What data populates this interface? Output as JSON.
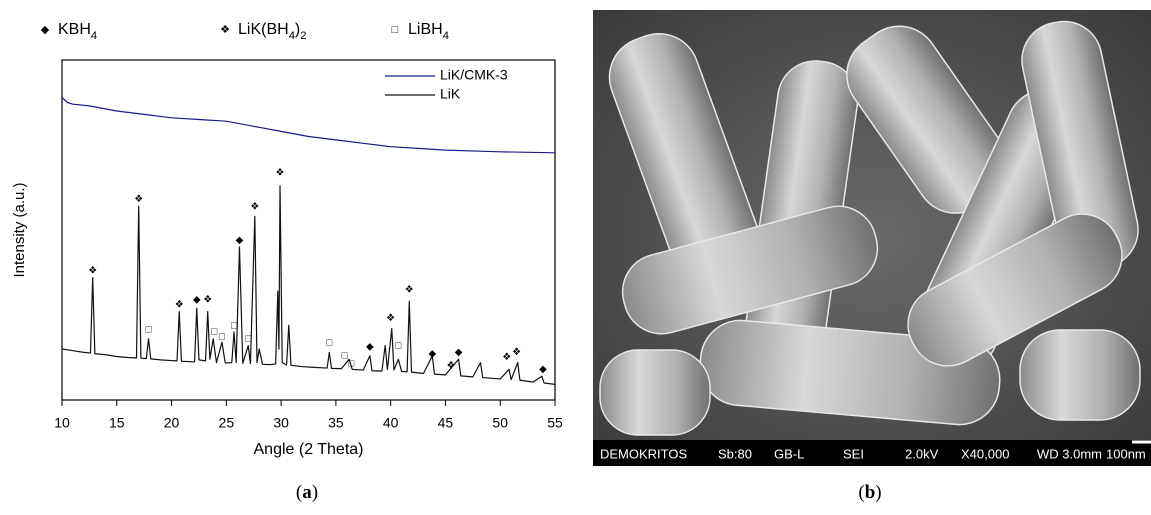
{
  "chart_data": {
    "type": "line",
    "x_label": "Angle (2 Theta)",
    "y_label": "Intensity (a.u.)",
    "xlim": [
      10,
      55
    ],
    "xticks": [
      10,
      15,
      20,
      25,
      30,
      35,
      40,
      45,
      50,
      55
    ],
    "ylim": [
      0,
      100
    ],
    "legend": "top-right",
    "series": [
      {
        "name": "LiK/CMK-3",
        "color": "#1a1a8c",
        "x": [
          10,
          10.5,
          11,
          12.5,
          15,
          17.5,
          20,
          22.5,
          25,
          27.5,
          30,
          32.5,
          35,
          37.5,
          40,
          42.5,
          45,
          50,
          55
        ],
        "values": [
          89,
          87.5,
          87,
          86.5,
          85,
          84,
          83,
          82.5,
          82,
          80.5,
          79,
          77.5,
          76.5,
          75.5,
          74.5,
          74,
          73.5,
          73,
          72.7
        ]
      },
      {
        "name": "LiK",
        "color": "#111111",
        "x": [
          10,
          11,
          12,
          12.6,
          12.8,
          13.0,
          14,
          15,
          16,
          16.8,
          17.0,
          17.2,
          17.7,
          17.9,
          18.1,
          19,
          20,
          20.5,
          20.7,
          20.9,
          21.5,
          22.1,
          22.3,
          22.5,
          23.1,
          23.3,
          23.5,
          23.8,
          24.1,
          24.6,
          24.9,
          25.5,
          25.7,
          25.9,
          26.2,
          26.5,
          27.0,
          27.2,
          27.6,
          27.8,
          28.0,
          28.3,
          29,
          29.5,
          29.7,
          29.8,
          29.9,
          30.1,
          30.5,
          30.7,
          30.9,
          32,
          33,
          34.2,
          34.4,
          34.6,
          35.5,
          36.2,
          36.5,
          37.5,
          38.1,
          38.3,
          39.2,
          39.5,
          39.7,
          40.1,
          40.3,
          40.7,
          41,
          41.5,
          41.7,
          41.9,
          43,
          43.8,
          44,
          45,
          46.2,
          46.4,
          47.5,
          48.2,
          48.4,
          50,
          50.8,
          51,
          51.6,
          51.8,
          53,
          53.8,
          54,
          55
        ],
        "values": [
          15,
          14.5,
          14,
          13.8,
          36,
          13.6,
          13.3,
          12.8,
          12.5,
          12.4,
          57,
          12.3,
          12.2,
          18,
          12.1,
          11.8,
          11.6,
          11.5,
          26,
          11.4,
          11.3,
          11.2,
          27,
          11.8,
          11.5,
          26,
          12,
          18,
          11,
          17,
          10.9,
          11,
          20,
          11,
          45,
          10.8,
          16,
          10.7,
          54,
          11,
          15,
          10.5,
          10.4,
          10.6,
          32,
          15,
          63,
          11,
          10.3,
          22,
          10.2,
          9.8,
          9.6,
          9.4,
          14,
          9.3,
          9.2,
          12,
          9,
          8.8,
          13,
          8.6,
          8.5,
          16,
          9,
          21,
          8.8,
          12,
          8.4,
          8.3,
          29,
          8.2,
          7.8,
          13,
          7.6,
          7.4,
          12,
          7.1,
          6.8,
          11,
          6.6,
          6.2,
          9,
          6,
          11,
          5.8,
          5.3,
          7,
          5,
          4.6
        ]
      }
    ],
    "phases": [
      {
        "symbol": "◆",
        "label": [
          "KBH",
          "4"
        ]
      },
      {
        "symbol": "❖",
        "label": [
          "LiK(BH",
          "4",
          ")",
          "2"
        ]
      },
      {
        "symbol": "□",
        "label": [
          "LiBH",
          "4"
        ]
      }
    ],
    "markers": [
      {
        "x": 12.8,
        "y": 38,
        "phase": 1
      },
      {
        "x": 17.0,
        "y": 59,
        "phase": 1
      },
      {
        "x": 17.9,
        "y": 20.6,
        "phase": 2
      },
      {
        "x": 20.7,
        "y": 28,
        "phase": 1
      },
      {
        "x": 22.3,
        "y": 29.4,
        "phase": 0
      },
      {
        "x": 23.3,
        "y": 29.4,
        "phase": 1
      },
      {
        "x": 23.9,
        "y": 20,
        "phase": 2
      },
      {
        "x": 24.6,
        "y": 18.5,
        "phase": 2
      },
      {
        "x": 25.7,
        "y": 21.8,
        "phase": 2
      },
      {
        "x": 26.2,
        "y": 47,
        "phase": 0
      },
      {
        "x": 27.0,
        "y": 18,
        "phase": 2
      },
      {
        "x": 27.6,
        "y": 56.8,
        "phase": 1
      },
      {
        "x": 29.9,
        "y": 66.8,
        "phase": 1
      },
      {
        "x": 34.4,
        "y": 16.8,
        "phase": 2
      },
      {
        "x": 35.8,
        "y": 13,
        "phase": 2
      },
      {
        "x": 36.4,
        "y": 10.6,
        "phase": 2
      },
      {
        "x": 38.1,
        "y": 15.6,
        "phase": 0
      },
      {
        "x": 40.0,
        "y": 24,
        "phase": 1
      },
      {
        "x": 40.7,
        "y": 15.9,
        "phase": 2
      },
      {
        "x": 41.7,
        "y": 32.4,
        "phase": 1
      },
      {
        "x": 43.8,
        "y": 13.5,
        "phase": 0
      },
      {
        "x": 45.5,
        "y": 10,
        "phase": 1
      },
      {
        "x": 46.2,
        "y": 14,
        "phase": 0
      },
      {
        "x": 50.6,
        "y": 12.6,
        "phase": 1
      },
      {
        "x": 51.5,
        "y": 14,
        "phase": 1
      },
      {
        "x": 53.9,
        "y": 9,
        "phase": 0
      }
    ],
    "panel_label": [
      "(",
      "a",
      ")"
    ]
  },
  "sem_image": {
    "info_bar": [
      "DEMOKRITOS",
      "Sb:80",
      "GB-L",
      "SEI",
      "2.0kV",
      "X40,000",
      "WD 3.0mm",
      "100nm"
    ],
    "panel_label": [
      "(",
      "b",
      ")"
    ]
  }
}
